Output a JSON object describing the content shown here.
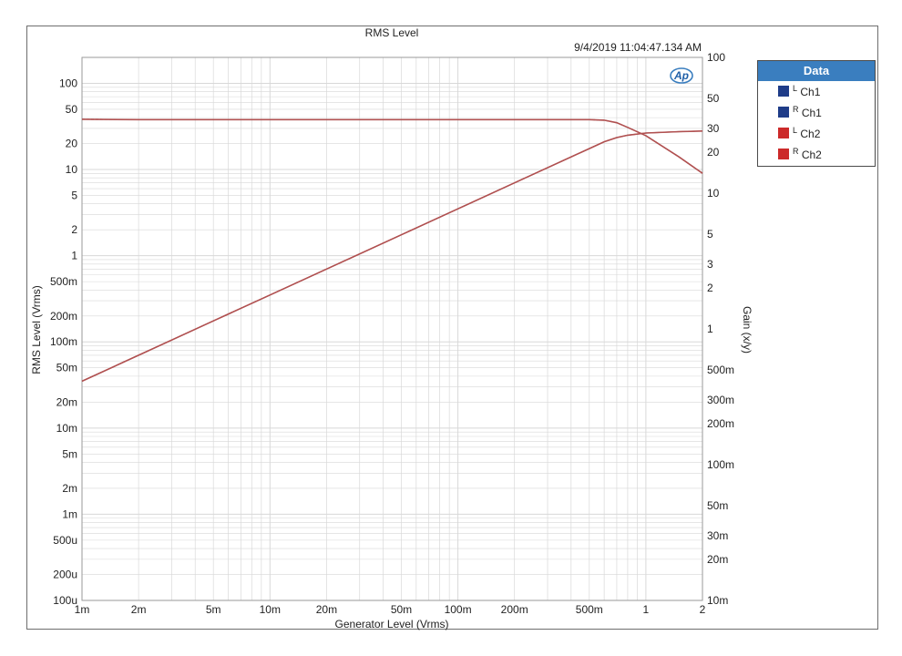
{
  "timestamp": "9/4/2019 11:04:47.134 AM",
  "logo": "Ap",
  "legend": {
    "title": "Data",
    "items": [
      {
        "chan": "L",
        "name": "Ch1",
        "color": "#1f3c88"
      },
      {
        "chan": "R",
        "name": "Ch1",
        "color": "#1f3c88"
      },
      {
        "chan": "L",
        "name": "Ch2",
        "color": "#cc2a2a"
      },
      {
        "chan": "R",
        "name": "Ch2",
        "color": "#cc2a2a"
      }
    ]
  },
  "colors": {
    "level_curve": "#b05050",
    "gain_curve": "#b05050",
    "grid": "#d8d8d8",
    "legend_header": "#3a7ebf"
  },
  "chart_data": {
    "type": "line",
    "title": "RMS Level",
    "xlabel": "Generator Level (Vrms)",
    "ylabel": "RMS Level (Vrms)",
    "y2label": "Gain (x/y)",
    "xscale": "log",
    "yscale": "log",
    "y2scale": "log",
    "xlim": [
      0.001,
      2
    ],
    "ylim": [
      0.0001,
      200
    ],
    "y2lim": [
      0.01,
      100
    ],
    "grid": true,
    "legend_position": "right",
    "x_ticks": [
      {
        "v": 0.001,
        "t": "1m"
      },
      {
        "v": 0.002,
        "t": "2m"
      },
      {
        "v": 0.005,
        "t": "5m"
      },
      {
        "v": 0.01,
        "t": "10m"
      },
      {
        "v": 0.02,
        "t": "20m"
      },
      {
        "v": 0.05,
        "t": "50m"
      },
      {
        "v": 0.1,
        "t": "100m"
      },
      {
        "v": 0.2,
        "t": "200m"
      },
      {
        "v": 0.5,
        "t": "500m"
      },
      {
        "v": 1,
        "t": "1"
      },
      {
        "v": 2,
        "t": "2"
      }
    ],
    "y_ticks": [
      {
        "v": 100,
        "t": "100"
      },
      {
        "v": 50,
        "t": "50"
      },
      {
        "v": 20,
        "t": "20"
      },
      {
        "v": 10,
        "t": "10"
      },
      {
        "v": 5,
        "t": "5"
      },
      {
        "v": 2,
        "t": "2"
      },
      {
        "v": 1,
        "t": "1"
      },
      {
        "v": 0.5,
        "t": "500m"
      },
      {
        "v": 0.2,
        "t": "200m"
      },
      {
        "v": 0.1,
        "t": "100m"
      },
      {
        "v": 0.05,
        "t": "50m"
      },
      {
        "v": 0.02,
        "t": "20m"
      },
      {
        "v": 0.01,
        "t": "10m"
      },
      {
        "v": 0.005,
        "t": "5m"
      },
      {
        "v": 0.002,
        "t": "2m"
      },
      {
        "v": 0.001,
        "t": "1m"
      },
      {
        "v": 0.0005,
        "t": "500u"
      },
      {
        "v": 0.0002,
        "t": "200u"
      },
      {
        "v": 0.0001,
        "t": "100u"
      }
    ],
    "y2_ticks": [
      {
        "v": 100,
        "t": "100"
      },
      {
        "v": 50,
        "t": "50"
      },
      {
        "v": 30,
        "t": "30"
      },
      {
        "v": 20,
        "t": "20"
      },
      {
        "v": 10,
        "t": "10"
      },
      {
        "v": 5,
        "t": "5"
      },
      {
        "v": 3,
        "t": "3"
      },
      {
        "v": 2,
        "t": "2"
      },
      {
        "v": 1,
        "t": "1"
      },
      {
        "v": 0.5,
        "t": "500m"
      },
      {
        "v": 0.3,
        "t": "300m"
      },
      {
        "v": 0.2,
        "t": "200m"
      },
      {
        "v": 0.1,
        "t": "100m"
      },
      {
        "v": 0.05,
        "t": "50m"
      },
      {
        "v": 0.03,
        "t": "30m"
      },
      {
        "v": 0.02,
        "t": "20m"
      },
      {
        "v": 0.01,
        "t": "10m"
      }
    ],
    "series": [
      {
        "name": "Ch1",
        "axis": "left",
        "x": [
          0.001,
          0.002,
          0.005,
          0.01,
          0.02,
          0.05,
          0.1,
          0.2,
          0.5,
          0.6,
          0.7,
          0.8,
          1,
          1.5,
          2
        ],
        "y": [
          0.035,
          0.07,
          0.175,
          0.35,
          0.7,
          1.75,
          3.5,
          7.0,
          17.5,
          21.0,
          23.5,
          25.0,
          26.5,
          27.5,
          28.0
        ]
      },
      {
        "name": "Ch2",
        "axis": "left",
        "x": [
          0.001,
          0.002,
          0.005,
          0.01,
          0.02,
          0.05,
          0.1,
          0.2,
          0.5,
          0.6,
          0.7,
          0.8,
          1,
          1.5,
          2
        ],
        "y": [
          0.035,
          0.07,
          0.175,
          0.35,
          0.7,
          1.75,
          3.5,
          7.0,
          17.5,
          21.0,
          23.5,
          25.0,
          26.5,
          27.5,
          28.0
        ]
      },
      {
        "name": "Ch1",
        "axis": "right",
        "x": [
          0.001,
          0.002,
          0.01,
          0.1,
          0.5,
          0.6,
          0.7,
          0.8,
          1,
          1.5,
          2
        ],
        "y": [
          35,
          34.8,
          34.8,
          34.8,
          34.8,
          34.5,
          33.0,
          30.5,
          26.5,
          18.5,
          14.0
        ]
      },
      {
        "name": "Ch2",
        "axis": "right",
        "x": [
          0.001,
          0.002,
          0.01,
          0.1,
          0.5,
          0.6,
          0.7,
          0.8,
          1,
          1.5,
          2
        ],
        "y": [
          35,
          34.8,
          34.8,
          34.8,
          34.8,
          34.5,
          33.0,
          30.5,
          26.5,
          18.5,
          14.0
        ]
      }
    ]
  }
}
